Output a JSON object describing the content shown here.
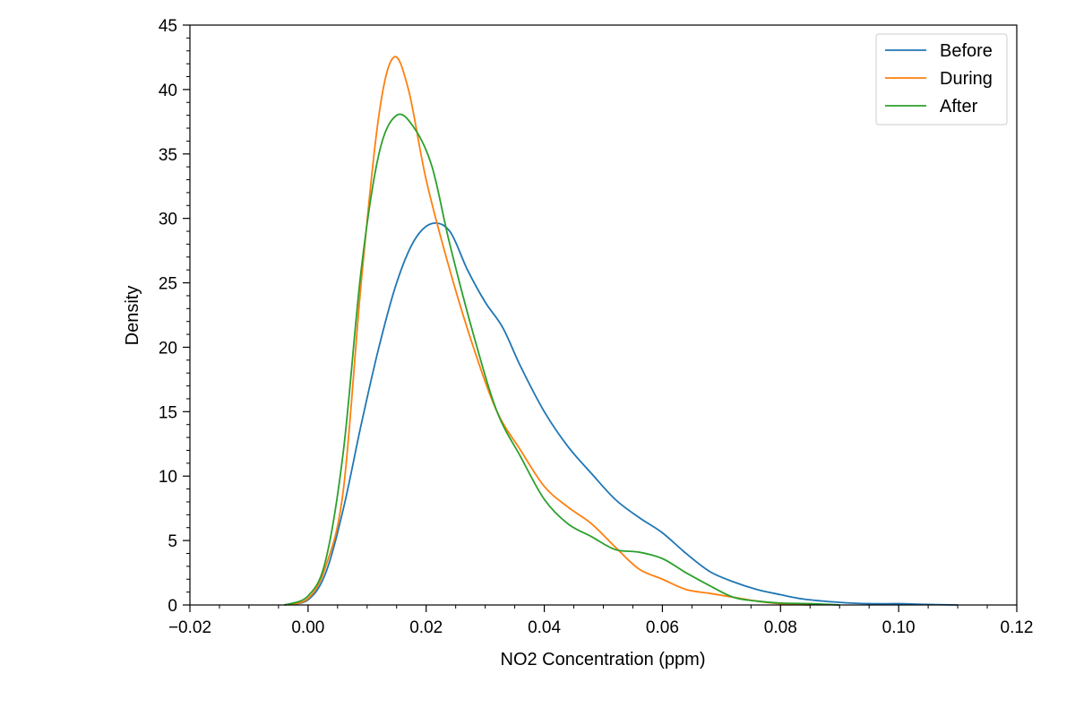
{
  "chart_data": {
    "type": "line",
    "title": "",
    "xlabel": "NO2 Concentration (ppm)",
    "ylabel": "Density",
    "xlim": [
      -0.02,
      0.12
    ],
    "ylim": [
      0,
      45
    ],
    "x_ticks": [
      -0.02,
      0.0,
      0.02,
      0.04,
      0.06,
      0.08,
      0.1,
      0.12
    ],
    "x_tick_labels": [
      "−0.02",
      "0.00",
      "0.02",
      "0.04",
      "0.06",
      "0.08",
      "0.10",
      "0.12"
    ],
    "y_ticks": [
      0,
      5,
      10,
      15,
      20,
      25,
      30,
      35,
      40,
      45
    ],
    "y_tick_labels": [
      "0",
      "5",
      "10",
      "15",
      "20",
      "25",
      "30",
      "35",
      "40",
      "45"
    ],
    "grid": false,
    "legend_position": "top-right",
    "series": [
      {
        "name": "Before",
        "color": "#1f77b4",
        "points": [
          [
            -0.004,
            0
          ],
          [
            0,
            0.4
          ],
          [
            0.003,
            2.5
          ],
          [
            0.006,
            7.5
          ],
          [
            0.009,
            14
          ],
          [
            0.012,
            20
          ],
          [
            0.015,
            25
          ],
          [
            0.018,
            28.3
          ],
          [
            0.021,
            29.6
          ],
          [
            0.024,
            29
          ],
          [
            0.027,
            26
          ],
          [
            0.03,
            23.5
          ],
          [
            0.033,
            21.5
          ],
          [
            0.036,
            18.5
          ],
          [
            0.04,
            15
          ],
          [
            0.044,
            12.3
          ],
          [
            0.048,
            10.2
          ],
          [
            0.052,
            8.2
          ],
          [
            0.056,
            6.8
          ],
          [
            0.06,
            5.6
          ],
          [
            0.064,
            4
          ],
          [
            0.068,
            2.6
          ],
          [
            0.072,
            1.8
          ],
          [
            0.076,
            1.2
          ],
          [
            0.08,
            0.8
          ],
          [
            0.084,
            0.45
          ],
          [
            0.09,
            0.2
          ],
          [
            0.095,
            0.1
          ],
          [
            0.1,
            0.1
          ],
          [
            0.104,
            0.05
          ],
          [
            0.11,
            0
          ]
        ]
      },
      {
        "name": "During",
        "color": "#ff7f0e",
        "points": [
          [
            -0.004,
            0
          ],
          [
            0,
            0.5
          ],
          [
            0.003,
            3
          ],
          [
            0.006,
            9
          ],
          [
            0.009,
            25
          ],
          [
            0.012,
            38
          ],
          [
            0.0145,
            42.5
          ],
          [
            0.017,
            40
          ],
          [
            0.02,
            33
          ],
          [
            0.024,
            26
          ],
          [
            0.028,
            20
          ],
          [
            0.032,
            15
          ],
          [
            0.036,
            12
          ],
          [
            0.04,
            9.2
          ],
          [
            0.044,
            7.6
          ],
          [
            0.048,
            6.3
          ],
          [
            0.052,
            4.5
          ],
          [
            0.056,
            2.8
          ],
          [
            0.06,
            2
          ],
          [
            0.064,
            1.2
          ],
          [
            0.068,
            0.9
          ],
          [
            0.072,
            0.6
          ],
          [
            0.076,
            0.3
          ],
          [
            0.08,
            0.1
          ],
          [
            0.085,
            0
          ]
        ]
      },
      {
        "name": "After",
        "color": "#2ca02c",
        "points": [
          [
            -0.004,
            0
          ],
          [
            0,
            0.7
          ],
          [
            0.003,
            3.5
          ],
          [
            0.006,
            12
          ],
          [
            0.009,
            26
          ],
          [
            0.012,
            35
          ],
          [
            0.015,
            38
          ],
          [
            0.018,
            37
          ],
          [
            0.021,
            34
          ],
          [
            0.024,
            28
          ],
          [
            0.028,
            21
          ],
          [
            0.032,
            15
          ],
          [
            0.036,
            11.5
          ],
          [
            0.04,
            8.2
          ],
          [
            0.044,
            6.3
          ],
          [
            0.048,
            5.3
          ],
          [
            0.052,
            4.3
          ],
          [
            0.056,
            4.1
          ],
          [
            0.06,
            3.6
          ],
          [
            0.064,
            2.5
          ],
          [
            0.068,
            1.5
          ],
          [
            0.072,
            0.6
          ],
          [
            0.076,
            0.3
          ],
          [
            0.08,
            0.15
          ],
          [
            0.085,
            0.1
          ],
          [
            0.09,
            0
          ]
        ]
      }
    ]
  }
}
